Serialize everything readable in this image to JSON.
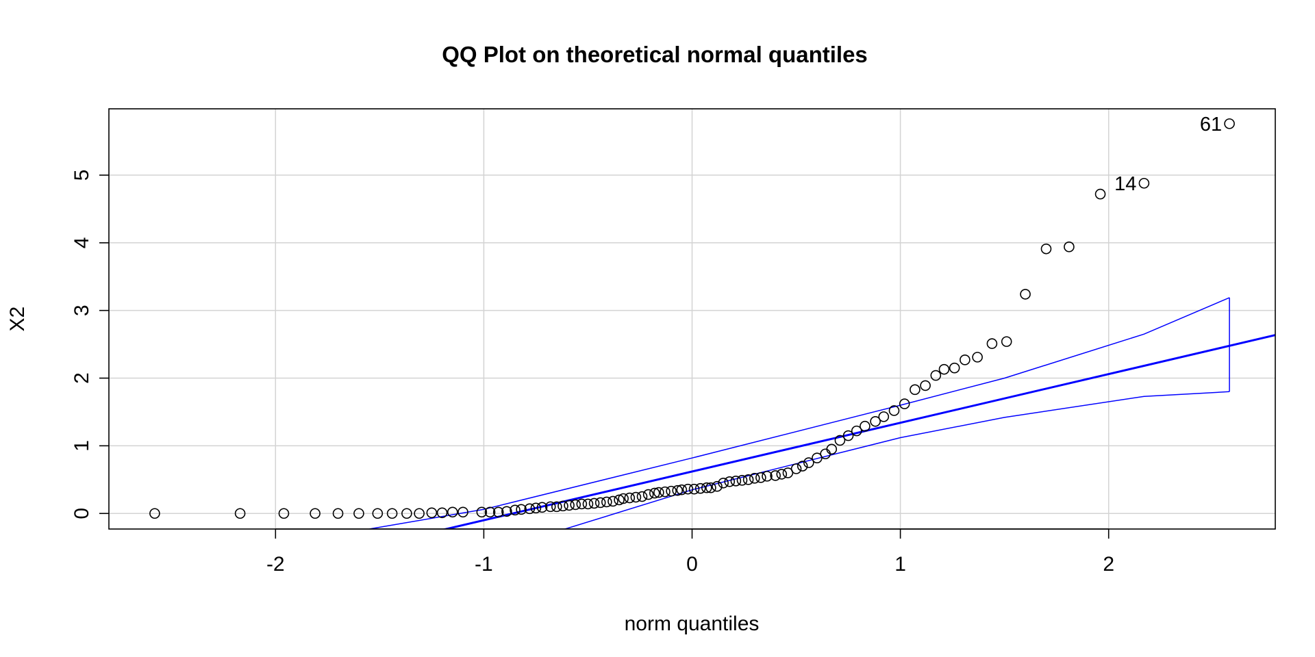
{
  "chart_data": {
    "type": "scatter",
    "title": "QQ Plot on theoretical normal quantiles",
    "xlabel": "norm quantiles",
    "ylabel": "X2",
    "xlim": [
      -2.8,
      2.8
    ],
    "ylim": [
      -0.23,
      5.98
    ],
    "x_ticks": [
      -2,
      -1,
      0,
      1,
      2
    ],
    "y_ticks": [
      0,
      1,
      2,
      3,
      4,
      5
    ],
    "x_tick_labels": [
      "-2",
      "-1",
      "0",
      "1",
      "2"
    ],
    "y_tick_labels": [
      "0",
      "1",
      "2",
      "3",
      "4",
      "5"
    ],
    "grid": true,
    "colors": {
      "points": "#000000",
      "reference": "#0000ff",
      "grid": "#d3d3d3",
      "box": "#000000"
    },
    "points": [
      {
        "x": -2.58,
        "y": 0.0
      },
      {
        "x": -2.17,
        "y": 0.0
      },
      {
        "x": -1.96,
        "y": 0.0
      },
      {
        "x": -1.81,
        "y": 0.0
      },
      {
        "x": -1.7,
        "y": 0.0
      },
      {
        "x": -1.6,
        "y": 0.0
      },
      {
        "x": -1.51,
        "y": 0.0
      },
      {
        "x": -1.44,
        "y": 0.0
      },
      {
        "x": -1.37,
        "y": 0.0
      },
      {
        "x": -1.31,
        "y": 0.0
      },
      {
        "x": -1.25,
        "y": 0.01
      },
      {
        "x": -1.2,
        "y": 0.01
      },
      {
        "x": -1.15,
        "y": 0.02
      },
      {
        "x": -1.1,
        "y": 0.02
      },
      {
        "x": -1.01,
        "y": 0.02
      },
      {
        "x": -0.97,
        "y": 0.02
      },
      {
        "x": -0.93,
        "y": 0.02
      },
      {
        "x": -0.89,
        "y": 0.03
      },
      {
        "x": -0.85,
        "y": 0.05
      },
      {
        "x": -0.82,
        "y": 0.06
      },
      {
        "x": -0.78,
        "y": 0.07
      },
      {
        "x": -0.75,
        "y": 0.08
      },
      {
        "x": -0.72,
        "y": 0.09
      },
      {
        "x": -0.68,
        "y": 0.1
      },
      {
        "x": -0.65,
        "y": 0.1
      },
      {
        "x": -0.62,
        "y": 0.11
      },
      {
        "x": -0.59,
        "y": 0.12
      },
      {
        "x": -0.56,
        "y": 0.13
      },
      {
        "x": -0.53,
        "y": 0.14
      },
      {
        "x": -0.5,
        "y": 0.14
      },
      {
        "x": -0.47,
        "y": 0.15
      },
      {
        "x": -0.44,
        "y": 0.16
      },
      {
        "x": -0.41,
        "y": 0.17
      },
      {
        "x": -0.38,
        "y": 0.18
      },
      {
        "x": -0.35,
        "y": 0.2
      },
      {
        "x": -0.33,
        "y": 0.22
      },
      {
        "x": -0.3,
        "y": 0.23
      },
      {
        "x": -0.27,
        "y": 0.24
      },
      {
        "x": -0.24,
        "y": 0.25
      },
      {
        "x": -0.21,
        "y": 0.28
      },
      {
        "x": -0.18,
        "y": 0.3
      },
      {
        "x": -0.16,
        "y": 0.31
      },
      {
        "x": -0.13,
        "y": 0.32
      },
      {
        "x": -0.1,
        "y": 0.33
      },
      {
        "x": -0.07,
        "y": 0.34
      },
      {
        "x": -0.05,
        "y": 0.35
      },
      {
        "x": -0.02,
        "y": 0.36
      },
      {
        "x": 0.01,
        "y": 0.36
      },
      {
        "x": 0.04,
        "y": 0.37
      },
      {
        "x": 0.07,
        "y": 0.38
      },
      {
        "x": 0.09,
        "y": 0.38
      },
      {
        "x": 0.12,
        "y": 0.4
      },
      {
        "x": 0.15,
        "y": 0.45
      },
      {
        "x": 0.18,
        "y": 0.47
      },
      {
        "x": 0.21,
        "y": 0.48
      },
      {
        "x": 0.24,
        "y": 0.49
      },
      {
        "x": 0.27,
        "y": 0.5
      },
      {
        "x": 0.3,
        "y": 0.52
      },
      {
        "x": 0.33,
        "y": 0.53
      },
      {
        "x": 0.36,
        "y": 0.55
      },
      {
        "x": 0.4,
        "y": 0.56
      },
      {
        "x": 0.43,
        "y": 0.58
      },
      {
        "x": 0.46,
        "y": 0.6
      },
      {
        "x": 0.5,
        "y": 0.66
      },
      {
        "x": 0.53,
        "y": 0.7
      },
      {
        "x": 0.56,
        "y": 0.75
      },
      {
        "x": 0.6,
        "y": 0.82
      },
      {
        "x": 0.64,
        "y": 0.88
      },
      {
        "x": 0.67,
        "y": 0.95
      },
      {
        "x": 0.71,
        "y": 1.08
      },
      {
        "x": 0.75,
        "y": 1.15
      },
      {
        "x": 0.79,
        "y": 1.22
      },
      {
        "x": 0.83,
        "y": 1.29
      },
      {
        "x": 0.88,
        "y": 1.36
      },
      {
        "x": 0.92,
        "y": 1.43
      },
      {
        "x": 0.97,
        "y": 1.52
      },
      {
        "x": 1.02,
        "y": 1.62
      },
      {
        "x": 1.07,
        "y": 1.83
      },
      {
        "x": 1.12,
        "y": 1.89
      },
      {
        "x": 1.17,
        "y": 2.04
      },
      {
        "x": 1.21,
        "y": 2.13
      },
      {
        "x": 1.26,
        "y": 2.15
      },
      {
        "x": 1.31,
        "y": 2.27
      },
      {
        "x": 1.37,
        "y": 2.31
      },
      {
        "x": 1.44,
        "y": 2.51
      },
      {
        "x": 1.51,
        "y": 2.54
      },
      {
        "x": 1.6,
        "y": 3.24
      },
      {
        "x": 1.7,
        "y": 3.91
      },
      {
        "x": 1.81,
        "y": 3.94
      },
      {
        "x": 1.96,
        "y": 4.72
      },
      {
        "x": 2.17,
        "y": 4.88
      },
      {
        "x": 2.58,
        "y": 5.76
      }
    ],
    "labeled_points": [
      {
        "label": "61",
        "x": 2.58,
        "y": 5.76
      },
      {
        "label": "14",
        "x": 2.17,
        "y": 4.88
      }
    ],
    "reference_line": {
      "intercept": 0.62,
      "slope": 0.72
    },
    "envelope": {
      "x": [
        -1.55,
        -1.0,
        0.0,
        1.0,
        1.5,
        2.17,
        2.58
      ],
      "upper": [
        -0.23,
        0.06,
        0.82,
        1.6,
        2.0,
        2.65,
        3.19
      ],
      "lower": [
        -1.5,
        -0.6,
        0.35,
        1.12,
        1.42,
        1.73,
        1.8
      ]
    }
  }
}
